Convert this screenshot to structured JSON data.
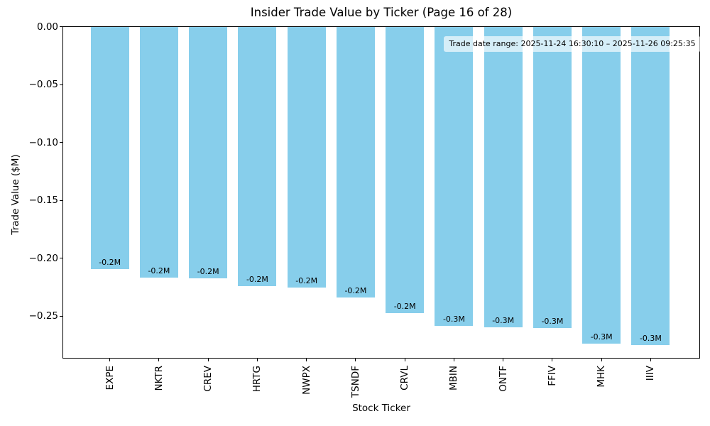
{
  "figure": {
    "background": "#ffffff",
    "text_color": "#000000",
    "spine_color": "#000000"
  },
  "chart_data": {
    "type": "bar",
    "title": "Insider Trade Value by Ticker (Page 16 of 28)",
    "xlabel": "Stock Ticker",
    "ylabel": "Trade Value ($M)",
    "categories": [
      "EXPE",
      "NKTR",
      "CREV",
      "HRTG",
      "NWPX",
      "TSNDF",
      "CRVL",
      "MBIN",
      "ONTF",
      "FFIV",
      "MHK",
      "IIIV"
    ],
    "values": [
      -0.2095,
      -0.2168,
      -0.2174,
      -0.2242,
      -0.2254,
      -0.2336,
      -0.2474,
      -0.2585,
      -0.2597,
      -0.26,
      -0.2737,
      -0.275
    ],
    "bar_labels": [
      "-0.2M",
      "-0.2M",
      "-0.2M",
      "-0.2M",
      "-0.2M",
      "-0.2M",
      "-0.2M",
      "-0.3M",
      "-0.3M",
      "-0.3M",
      "-0.3M",
      "-0.3M"
    ],
    "bar_color": "#87CEEB",
    "ylim": [
      -0.2866,
      0
    ],
    "yticks": [
      0,
      -0.05,
      -0.1,
      -0.15,
      -0.2,
      -0.25
    ],
    "ytick_labels": [
      "0.00",
      "−0.05",
      "−0.10",
      "−0.15",
      "−0.20",
      "−0.25"
    ],
    "xtick_rotation": 90,
    "grid": false,
    "legend": false,
    "annotation": "Trade date range: 2025-11-24 16:30:10 – 2025-11-26 09:25:35",
    "page_info": {
      "current": 16,
      "total": 28
    }
  }
}
